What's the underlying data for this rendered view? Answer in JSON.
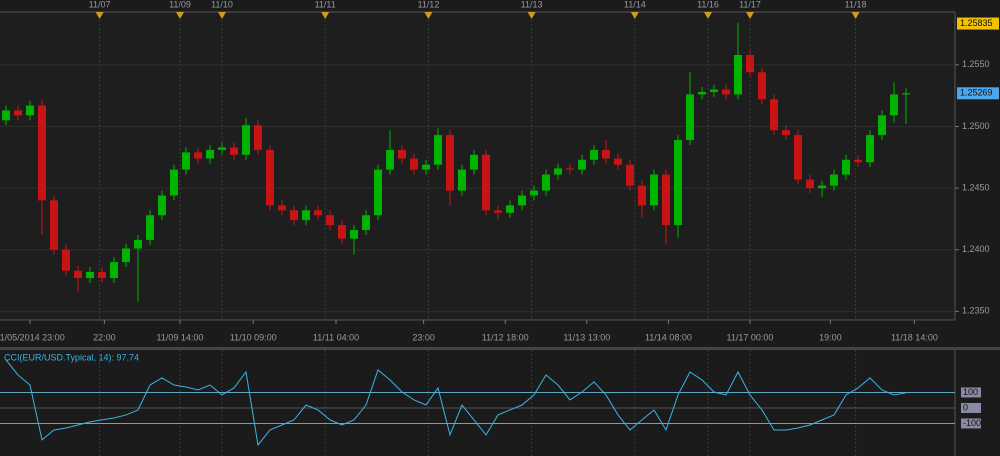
{
  "chart_data": {
    "type": "candlestick",
    "up_color": "#00b400",
    "down_color": "#c81414",
    "open": [
      1.2505,
      1.2513,
      1.2509,
      1.2517,
      1.244,
      1.24,
      1.2383,
      1.2377,
      1.2382,
      1.2377,
      1.239,
      1.2401,
      1.2408,
      1.2428,
      1.2444,
      1.2465,
      1.2479,
      1.2474,
      1.2481,
      1.2483,
      1.2477,
      1.2501,
      1.2481,
      1.2436,
      1.2432,
      1.2424,
      1.2432,
      1.2428,
      1.242,
      1.2409,
      1.2416,
      1.2428,
      1.2465,
      1.2481,
      1.2474,
      1.2465,
      1.2469,
      1.2493,
      1.2448,
      1.2465,
      1.2477,
      1.2432,
      1.243,
      1.2436,
      1.2444,
      1.2448,
      1.2461,
      1.2466,
      1.2465,
      1.2473,
      1.2481,
      1.2474,
      1.2469,
      1.2452,
      1.2436,
      1.2461,
      1.242,
      1.2489,
      1.2526,
      1.2528,
      1.253,
      1.2526,
      1.2558,
      1.2544,
      1.2522,
      1.2497,
      1.2493,
      1.2457,
      1.245,
      1.2452,
      1.2461,
      1.2473,
      1.2471,
      1.2493,
      1.2509,
      1.2526
    ],
    "high": [
      1.2517,
      1.2517,
      1.2521,
      1.2522,
      1.2444,
      1.2404,
      1.2387,
      1.2386,
      1.2386,
      1.2394,
      1.2405,
      1.2412,
      1.2432,
      1.2448,
      1.2469,
      1.2483,
      1.2483,
      1.2485,
      1.2487,
      1.2487,
      1.2507,
      1.2505,
      1.2485,
      1.244,
      1.2436,
      1.2436,
      1.2436,
      1.2432,
      1.2424,
      1.242,
      1.2432,
      1.2469,
      1.2497,
      1.2485,
      1.2478,
      1.2473,
      1.2499,
      1.2497,
      1.2469,
      1.2481,
      1.2481,
      1.2436,
      1.244,
      1.2448,
      1.2452,
      1.2465,
      1.247,
      1.247,
      1.2477,
      1.2485,
      1.2489,
      1.2478,
      1.2473,
      1.2456,
      1.2465,
      1.2465,
      1.2493,
      1.2544,
      1.2532,
      1.2534,
      1.2534,
      1.2584,
      1.2562,
      1.2548,
      1.2526,
      1.2501,
      1.2497,
      1.2461,
      1.2456,
      1.2465,
      1.2477,
      1.2477,
      1.2497,
      1.2513,
      1.2536,
      1.2531
    ],
    "low": [
      1.2501,
      1.2505,
      1.2505,
      1.2412,
      1.2396,
      1.2379,
      1.2366,
      1.2373,
      1.2373,
      1.2373,
      1.2386,
      1.2358,
      1.2404,
      1.2424,
      1.244,
      1.2461,
      1.247,
      1.247,
      1.2477,
      1.2473,
      1.2473,
      1.2477,
      1.2432,
      1.2428,
      1.242,
      1.242,
      1.2424,
      1.2416,
      1.2405,
      1.2396,
      1.2412,
      1.2424,
      1.2461,
      1.247,
      1.2461,
      1.2461,
      1.2465,
      1.2436,
      1.2444,
      1.2461,
      1.2428,
      1.2424,
      1.2426,
      1.2432,
      1.244,
      1.2444,
      1.2457,
      1.2461,
      1.2461,
      1.2469,
      1.247,
      1.2465,
      1.2448,
      1.2426,
      1.2432,
      1.2404,
      1.241,
      1.2485,
      1.2522,
      1.2524,
      1.2522,
      1.2522,
      1.254,
      1.2518,
      1.2493,
      1.2489,
      1.2453,
      1.2446,
      1.2443,
      1.2448,
      1.2457,
      1.2467,
      1.2467,
      1.2489,
      1.2503,
      1.2502
    ],
    "close": [
      1.2513,
      1.2509,
      1.2517,
      1.244,
      1.24,
      1.2383,
      1.2377,
      1.2382,
      1.2377,
      1.239,
      1.2401,
      1.2408,
      1.2428,
      1.2444,
      1.2465,
      1.2479,
      1.2474,
      1.2481,
      1.2483,
      1.2477,
      1.2501,
      1.2481,
      1.2436,
      1.2432,
      1.2424,
      1.2432,
      1.2428,
      1.242,
      1.2409,
      1.2416,
      1.2428,
      1.2465,
      1.2481,
      1.2474,
      1.2465,
      1.2469,
      1.2493,
      1.2448,
      1.2465,
      1.2477,
      1.2432,
      1.243,
      1.2436,
      1.2444,
      1.2448,
      1.2461,
      1.2466,
      1.2465,
      1.2473,
      1.2481,
      1.2474,
      1.2469,
      1.2452,
      1.2436,
      1.2461,
      1.242,
      1.2489,
      1.2526,
      1.2528,
      1.253,
      1.2526,
      1.2558,
      1.2544,
      1.2522,
      1.2497,
      1.2493,
      1.2457,
      1.245,
      1.2452,
      1.2461,
      1.2473,
      1.2471,
      1.2493,
      1.2509,
      1.2526,
      1.2527
    ],
    "ylim": [
      1.2343,
      1.2588
    ],
    "yticks": [
      {
        "value": 1.255,
        "label": "1.2550"
      },
      {
        "value": 1.25,
        "label": "1.2500"
      },
      {
        "value": 1.245,
        "label": "1.2450"
      },
      {
        "value": 1.24,
        "label": "1.2400"
      },
      {
        "value": 1.235,
        "label": "1.2350"
      }
    ],
    "grid": true,
    "price_markers": [
      {
        "value": 1.25835,
        "color": "#f2c200"
      },
      {
        "value": 1.25269,
        "color": "#4aa8f0"
      }
    ],
    "date_markers": [
      {
        "x": 7.8,
        "label": "11/07"
      },
      {
        "x": 14.5,
        "label": "11/09"
      },
      {
        "x": 18,
        "label": "11/10"
      },
      {
        "x": 26.6,
        "label": "11/11"
      },
      {
        "x": 35.2,
        "label": "11/12"
      },
      {
        "x": 43.8,
        "label": "11/13"
      },
      {
        "x": 52.4,
        "label": "11/14"
      },
      {
        "x": 58.5,
        "label": "11/16"
      },
      {
        "x": 62,
        "label": "11/17"
      },
      {
        "x": 70.8,
        "label": "11/18"
      }
    ],
    "x_labels": [
      {
        "x": 2,
        "label": "11/05/2014 23:00"
      },
      {
        "x": 8.2,
        "label": "22:00"
      },
      {
        "x": 14.5,
        "label": "11/09 14:00"
      },
      {
        "x": 20.6,
        "label": "11/10 09:00"
      },
      {
        "x": 27.5,
        "label": "11/11 04:00"
      },
      {
        "x": 34.8,
        "label": "23:00"
      },
      {
        "x": 41.6,
        "label": "11/12 18:00"
      },
      {
        "x": 48.4,
        "label": "11/13 13:00"
      },
      {
        "x": 55.2,
        "label": "11/14 08:00"
      },
      {
        "x": 62,
        "label": "11/17 00:00"
      },
      {
        "x": 68.7,
        "label": "19:00"
      },
      {
        "x": 75.7,
        "label": "11/18 14:00"
      }
    ],
    "indicator": {
      "type": "line",
      "label": "CCI(EUR/USD.Typical, 14): 97.74",
      "color": "#3cb4e6",
      "values": [
        310,
        213,
        148,
        -206,
        -142,
        -129,
        -110,
        -90,
        -77,
        -65,
        -45,
        -13,
        148,
        194,
        148,
        135,
        116,
        148,
        84,
        129,
        232,
        -239,
        -142,
        -110,
        -77,
        19,
        -13,
        -77,
        -110,
        -77,
        19,
        245,
        181,
        103,
        52,
        19,
        129,
        -174,
        19,
        -77,
        -174,
        -45,
        -13,
        19,
        84,
        213,
        148,
        52,
        103,
        168,
        84,
        -45,
        -142,
        -77,
        -13,
        -142,
        84,
        232,
        181,
        103,
        84,
        232,
        84,
        -13,
        -142,
        -142,
        -129,
        -110,
        -77,
        -45,
        84,
        129,
        194,
        116,
        84,
        97.74
      ],
      "ylim": [
        -310,
        374
      ],
      "yticks": [
        100,
        0,
        -100
      ],
      "levels": [
        100,
        -100
      ],
      "level_color": "#5fa8c8"
    }
  }
}
